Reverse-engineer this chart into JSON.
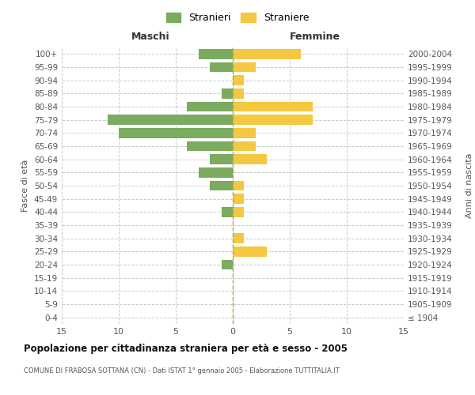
{
  "age_groups": [
    "0-4",
    "5-9",
    "10-14",
    "15-19",
    "20-24",
    "25-29",
    "30-34",
    "35-39",
    "40-44",
    "45-49",
    "50-54",
    "55-59",
    "60-64",
    "65-69",
    "70-74",
    "75-79",
    "80-84",
    "85-89",
    "90-94",
    "95-99",
    "100+"
  ],
  "birth_years": [
    "2000-2004",
    "1995-1999",
    "1990-1994",
    "1985-1989",
    "1980-1984",
    "1975-1979",
    "1970-1974",
    "1965-1969",
    "1960-1964",
    "1955-1959",
    "1950-1954",
    "1945-1949",
    "1940-1944",
    "1935-1939",
    "1930-1934",
    "1925-1929",
    "1920-1924",
    "1915-1919",
    "1910-1914",
    "1905-1909",
    "≤ 1904"
  ],
  "maschi": [
    3,
    2,
    0,
    1,
    4,
    11,
    10,
    4,
    2,
    3,
    2,
    0,
    1,
    0,
    0,
    0,
    1,
    0,
    0,
    0,
    0
  ],
  "femmine": [
    6,
    2,
    1,
    1,
    7,
    7,
    2,
    2,
    3,
    0,
    1,
    1,
    1,
    0,
    1,
    3,
    0,
    0,
    0,
    0,
    0
  ],
  "color_maschi": "#7aab5f",
  "color_femmine": "#f5c842",
  "xlim": 15,
  "title": "Popolazione per cittadinanza straniera per età e sesso - 2005",
  "subtitle": "COMUNE DI FRABOSA SOTTANA (CN) - Dati ISTAT 1° gennaio 2005 - Elaborazione TUTTITALIA.IT",
  "xlabel_left": "Maschi",
  "xlabel_right": "Femmine",
  "ylabel_left": "Fasce di età",
  "ylabel_right": "Anni di nascita",
  "legend_maschi": "Stranieri",
  "legend_femmine": "Straniere",
  "bg_color": "#ffffff",
  "grid_color": "#cccccc"
}
